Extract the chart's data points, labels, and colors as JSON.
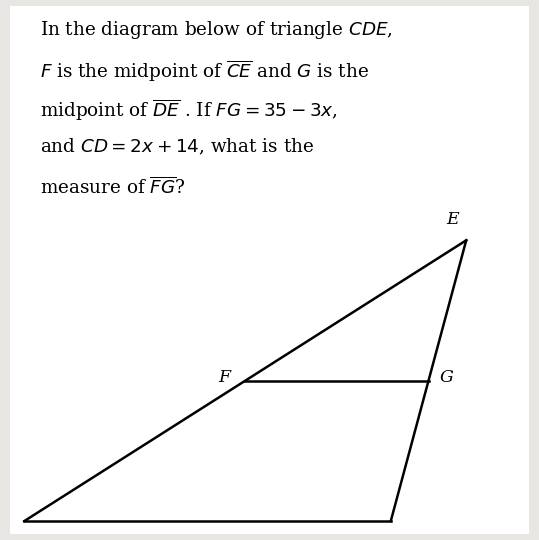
{
  "bg_color": "#e8e6e3",
  "paper_color": "#ffffff",
  "line_color": "#000000",
  "text_color": "#000000",
  "vertices": {
    "C": [
      -0.55,
      -1.0
    ],
    "D": [
      0.38,
      -1.0
    ],
    "E": [
      0.42,
      0.72
    ]
  },
  "F_label": "F",
  "G_label": "G",
  "E_label": "E",
  "math_lines": [
    "In the diagram below of triangle $CDE$,",
    "$F$ is the midpoint of $\\overline{CE}$ and $G$ is the",
    "midpoint of $\\overline{DE}$ . If $FG = 35 - 3x$,",
    "and $CD = 2x + 14$, what is the",
    "measure of $\\overline{FG}$?"
  ],
  "figsize": [
    5.39,
    5.4
  ],
  "dpi": 100
}
